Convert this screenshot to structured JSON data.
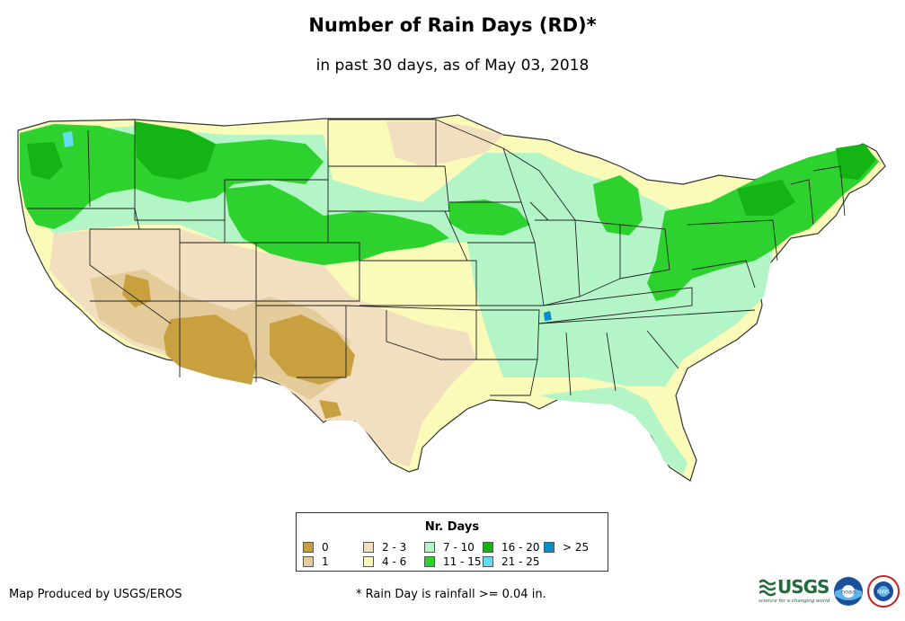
{
  "header": {
    "title": "Number of Rain Days (RD)*",
    "subtitle": "in past 30 days, as of May 03, 2018"
  },
  "legend": {
    "title": "Nr. Days",
    "classes": [
      {
        "label": "0",
        "color": "#c8a040"
      },
      {
        "label": "1",
        "color": "#e3cc9a"
      },
      {
        "label": "2 - 3",
        "color": "#f2dfc0"
      },
      {
        "label": "4 - 6",
        "color": "#fafab9"
      },
      {
        "label": "7 - 10",
        "color": "#b4f5c8"
      },
      {
        "label": "11 - 15",
        "color": "#2ed22e"
      },
      {
        "label": "16 - 20",
        "color": "#14b414"
      },
      {
        "label": "21 - 25",
        "color": "#64dcf0"
      },
      {
        "label": "> 25",
        "color": "#0a8cc8"
      }
    ]
  },
  "footer": {
    "producer": "Map Produced by USGS/EROS",
    "note": "* Rain Day is rainfall >= 0.04 in."
  },
  "logos": {
    "usgs": "USGS",
    "usgs_tagline": "science for a changing world",
    "noaa": "noaa",
    "nws": "NWS"
  },
  "colors": {
    "border": "#222222"
  }
}
